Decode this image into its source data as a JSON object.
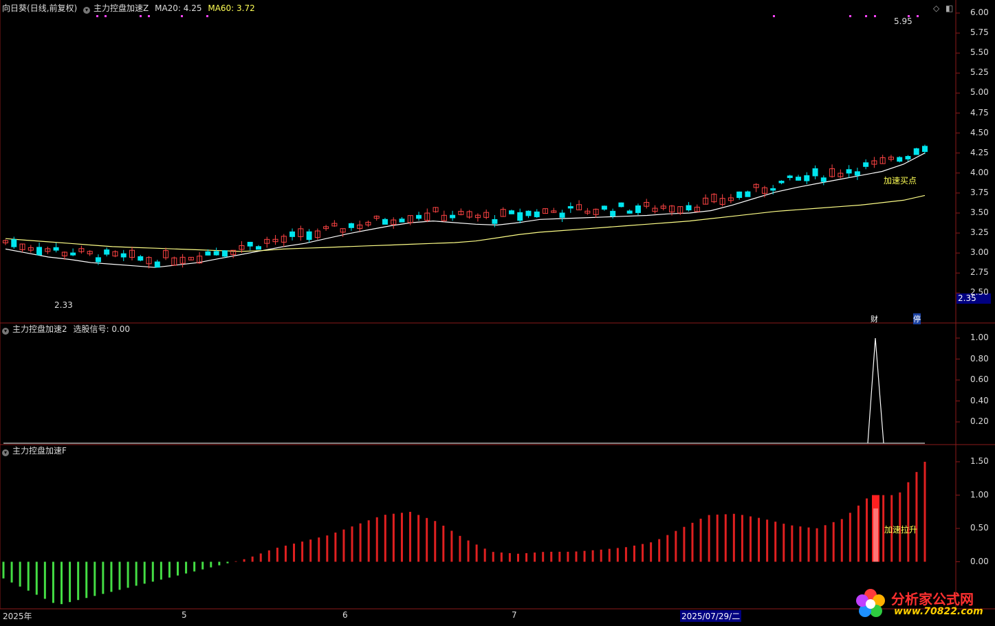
{
  "header": {
    "stock_name": "向日葵",
    "period": "(日线,前复权)",
    "indicator": "主力控盘加速Z",
    "ma20_label": "MA20: 4.25",
    "ma60_label": "MA60: 3.72"
  },
  "sub1": {
    "name": "主力控盘加速2",
    "signal_label": "选股信号: 0.00"
  },
  "sub2": {
    "name": "主力控盘加速F"
  },
  "price_axis": [
    "6.00",
    "5.75",
    "5.50",
    "5.25",
    "5.00",
    "4.75",
    "4.50",
    "4.25",
    "4.00",
    "3.75",
    "3.50",
    "3.25",
    "3.00",
    "2.75",
    "2.50"
  ],
  "sub1_axis": [
    "1.00",
    "0.80",
    "0.60",
    "0.40",
    "0.20"
  ],
  "sub2_axis": [
    "1.50",
    "1.00",
    "0.50",
    "0.00"
  ],
  "current_price": "2.35",
  "annotations": {
    "high": "5.95",
    "low": "2.33",
    "buy_point": "加速买点",
    "rise": "加速拉升"
  },
  "markers": {
    "cai": "财",
    "ting": "停"
  },
  "x_axis": {
    "year": "2025年",
    "m5": "5",
    "m6": "6",
    "m7": "7",
    "cursor_date": "2025/07/29/二"
  },
  "watermark": {
    "title": "分析家公式网",
    "url": "www.70822.com"
  },
  "colors": {
    "up": "#ff4444",
    "down": "#00e5ee",
    "ma20": "#ffffff",
    "ma60": "#ffff88",
    "bar_pos": "#e02020",
    "bar_neg": "#44dd44",
    "signal_dot": "#ff44ff"
  },
  "chart_data": {
    "type": "candlestick",
    "series": [
      {
        "name": "MA20",
        "values": [
          3.05,
          3.0,
          2.95,
          2.92,
          2.88,
          2.86,
          2.84,
          2.82,
          2.85,
          2.88,
          2.93,
          2.98,
          3.03,
          3.08,
          3.12,
          3.18,
          3.24,
          3.29,
          3.34,
          3.38,
          3.4,
          3.38,
          3.36,
          3.35,
          3.38,
          3.42,
          3.43,
          3.44,
          3.45,
          3.46,
          3.47,
          3.49,
          3.5,
          3.53,
          3.6,
          3.68,
          3.76,
          3.82,
          3.87,
          3.92,
          3.97,
          4.02,
          4.11,
          4.25
        ]
      },
      {
        "name": "MA60",
        "values": [
          3.18,
          3.16,
          3.14,
          3.12,
          3.1,
          3.08,
          3.07,
          3.06,
          3.05,
          3.04,
          3.03,
          3.02,
          3.03,
          3.05,
          3.06,
          3.07,
          3.08,
          3.09,
          3.1,
          3.11,
          3.12,
          3.13,
          3.15,
          3.19,
          3.23,
          3.26,
          3.28,
          3.3,
          3.32,
          3.34,
          3.36,
          3.38,
          3.4,
          3.43,
          3.46,
          3.49,
          3.52,
          3.54,
          3.56,
          3.58,
          3.6,
          3.63,
          3.66,
          3.72
        ]
      }
    ],
    "price_ylim": [
      2.35,
      6.1
    ],
    "sub1_signal": {
      "peak_value": 1.0
    },
    "sub2_bars": [
      -0.25,
      -0.45,
      -0.65,
      -0.55,
      -0.45,
      -0.35,
      -0.25,
      -0.15,
      -0.05,
      0.05,
      0.2,
      0.3,
      0.4,
      0.55,
      0.7,
      0.75,
      0.6,
      0.35,
      0.15,
      0.12,
      0.15,
      0.15,
      0.18,
      0.22,
      0.3,
      0.5,
      0.7,
      0.72,
      0.65,
      0.55,
      0.5,
      0.65,
      1.0,
      1.0,
      1.5
    ]
  }
}
